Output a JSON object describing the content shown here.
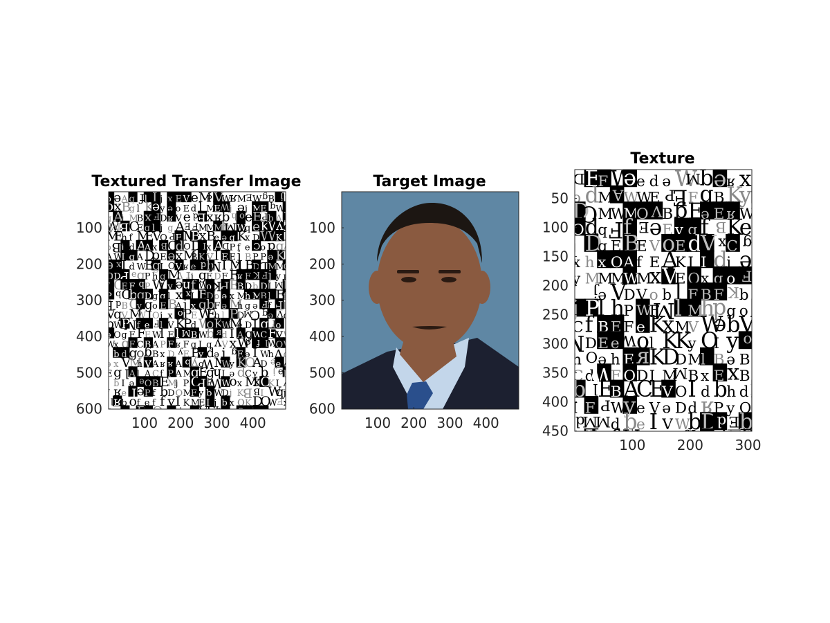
{
  "figure": {
    "background": "#ffffff",
    "axis_color": "#262626"
  },
  "chart_data": [
    {
      "type": "image",
      "title": "Textured Transfer Image",
      "content": "letter texture collage",
      "image_width": 490,
      "image_height": 600,
      "xticks": [
        100,
        200,
        300,
        400
      ],
      "yticks": [
        100,
        200,
        300,
        400,
        500,
        600
      ],
      "xlim": [
        0.5,
        490.5
      ],
      "ylim": [
        0.5,
        600.5
      ],
      "y_direction": "reverse",
      "colormap": "gray"
    },
    {
      "type": "image",
      "title": "Target Image",
      "content": "portrait photograph",
      "image_width": 490,
      "image_height": 600,
      "xticks": [
        100,
        200,
        300,
        400
      ],
      "yticks": [
        100,
        200,
        300,
        400,
        500,
        600
      ],
      "xlim": [
        0.5,
        490.5
      ],
      "ylim": [
        0.5,
        600.5
      ],
      "y_direction": "reverse",
      "colors": {
        "background": "#5f87a4",
        "suit": "#1c2030",
        "shirt": "#c3d6ea",
        "tie": "#2a4f8c",
        "skin": "#8a5a40",
        "hair": "#1c1612"
      }
    },
    {
      "type": "image",
      "title": "Texture",
      "content": "letter texture",
      "image_width": 306,
      "image_height": 450,
      "xticks": [
        100,
        200,
        300
      ],
      "yticks": [
        50,
        100,
        150,
        200,
        250,
        300,
        350,
        400,
        450
      ],
      "xlim": [
        0.5,
        306.5
      ],
      "ylim": [
        0.5,
        450.5
      ],
      "y_direction": "reverse",
      "colormap": "gray"
    }
  ],
  "texture_glyphs": [
    "E",
    "W",
    "e",
    "g",
    "B",
    "f",
    "j",
    "q",
    "A",
    "b",
    "x",
    "M",
    "C",
    "l",
    "o",
    "ə",
    "ʁ",
    "h",
    "y",
    "K",
    "I",
    "D",
    "V",
    "F",
    "O",
    "P",
    "E",
    "d",
    "M",
    "W"
  ]
}
